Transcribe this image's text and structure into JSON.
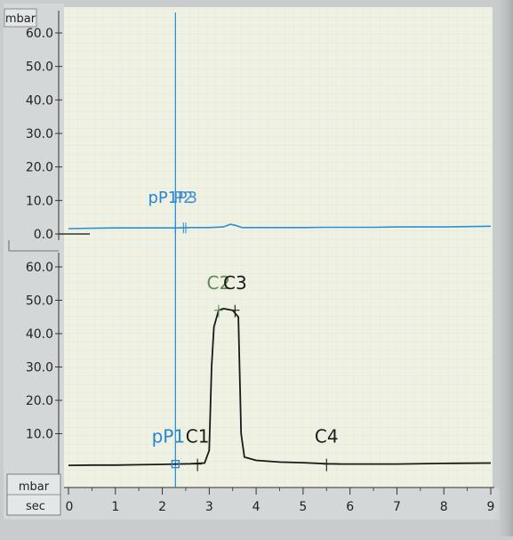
{
  "colors": {
    "paper": "#eef1e4",
    "gridline": "#dfe6c5",
    "axis_strip": "#cfd3d3",
    "upper_trace": "#2f8fd6",
    "lower_trace": "#1a1a1a",
    "cursor_line": "#2f8fd6",
    "marker_p": "#2a86cf",
    "marker_c2": "#5b8c52",
    "marker_c": "#1a1a1a"
  },
  "chart_data": [
    {
      "type": "line",
      "panel": "upper",
      "ylabel": "mbar",
      "ylim": [
        0,
        65
      ],
      "yticks": [
        "60.0",
        "50.0",
        "40.0",
        "30.0",
        "20.0",
        "10.0",
        "0.0"
      ],
      "x": [
        0,
        0.5,
        1.0,
        1.5,
        2.0,
        2.3,
        2.6,
        3.0,
        3.3,
        3.45,
        3.55,
        3.7,
        4.0,
        4.5,
        5.0,
        5.5,
        6.0,
        6.5,
        7.0,
        7.5,
        8.0,
        8.5,
        9.0
      ],
      "series": [
        {
          "values": [
            1.6,
            1.7,
            1.8,
            1.8,
            1.8,
            1.8,
            1.9,
            1.9,
            2.1,
            2.9,
            2.6,
            1.9,
            1.9,
            1.9,
            1.9,
            2.0,
            2.0,
            2.0,
            2.1,
            2.1,
            2.1,
            2.2,
            2.3
          ]
        }
      ],
      "markers": [
        {
          "label": "pP1",
          "x": 2.28,
          "y": 1.8
        },
        {
          "label": "P2",
          "x": 2.45,
          "y": 1.8
        },
        {
          "label": "P3",
          "x": 2.5,
          "y": 1.8
        }
      ]
    },
    {
      "type": "line",
      "panel": "lower",
      "ylabel": "mbar",
      "xlabel": "sec",
      "ylim": [
        0,
        65
      ],
      "xlim": [
        0,
        9
      ],
      "yticks": [
        "60.0",
        "50.0",
        "40.0",
        "30.0",
        "20.0",
        "10.0"
      ],
      "xticks": [
        "0",
        "1",
        "2",
        "3",
        "4",
        "5",
        "6",
        "7",
        "8",
        "9"
      ],
      "x": [
        0,
        0.5,
        1.0,
        1.5,
        2.0,
        2.3,
        2.6,
        2.9,
        3.0,
        3.05,
        3.1,
        3.2,
        3.3,
        3.5,
        3.62,
        3.68,
        3.75,
        4.0,
        4.5,
        5.0,
        5.5,
        5.8,
        6.0,
        7.0,
        8.0,
        9.0
      ],
      "series": [
        {
          "values": [
            0.5,
            0.6,
            0.6,
            0.7,
            0.8,
            0.9,
            1.0,
            1.2,
            5.0,
            30.0,
            42.0,
            47.0,
            47.5,
            47.0,
            45.0,
            10.0,
            3.0,
            2.0,
            1.5,
            1.3,
            1.0,
            0.9,
            0.9,
            0.9,
            1.1,
            1.2
          ]
        }
      ],
      "markers": [
        {
          "label": "pP1",
          "x": 2.28,
          "y": 0.9
        },
        {
          "label": "C1",
          "x": 2.75,
          "y": 0.9
        },
        {
          "label": "C2",
          "x": 3.2,
          "y": 47.0
        },
        {
          "label": "C3",
          "x": 3.55,
          "y": 47.0
        },
        {
          "label": "C4",
          "x": 5.5,
          "y": 0.9
        }
      ],
      "cursor_x": 2.28
    }
  ]
}
